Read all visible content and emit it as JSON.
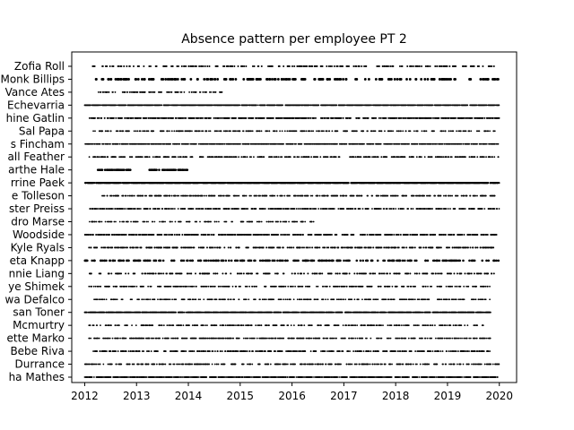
{
  "chart_data": {
    "type": "scatter",
    "title": "Absence pattern per employee PT 2",
    "xlabel": "",
    "ylabel": "",
    "xlim": [
      "2011-10-01",
      "2020-05-01"
    ],
    "x_ticks": [
      "2012",
      "2013",
      "2014",
      "2015",
      "2016",
      "2017",
      "2018",
      "2019",
      "2020"
    ],
    "grid": false,
    "legend": "none",
    "marker_color": "#000000",
    "employees": [
      {
        "name": "Zofia Roll",
        "spans": [
          [
            "2012-02-01",
            "2019-12-01"
          ]
        ],
        "density": 0.18,
        "size": 1.0
      },
      {
        "name": "Monk Billips",
        "spans": [
          [
            "2012-01-01",
            "2019-12-31"
          ]
        ],
        "density": 0.12,
        "size": 1.4
      },
      {
        "name": "Vance Ates",
        "spans": [
          [
            "2012-03-01",
            "2014-09-01"
          ]
        ],
        "density": 0.22,
        "size": 0.9
      },
      {
        "name": "Echevarria",
        "spans": [
          [
            "2012-01-01",
            "2019-12-31"
          ]
        ],
        "density": 0.95,
        "size": 0.9
      },
      {
        "name": "hine Gatlin",
        "spans": [
          [
            "2012-02-01",
            "2019-12-31"
          ]
        ],
        "density": 0.35,
        "size": 1.0
      },
      {
        "name": "Sal Papa",
        "spans": [
          [
            "2012-03-01",
            "2019-12-01"
          ]
        ],
        "density": 0.25,
        "size": 0.9
      },
      {
        "name": "s Fincham",
        "spans": [
          [
            "2012-01-01",
            "2019-12-31"
          ]
        ],
        "density": 0.55,
        "size": 0.9
      },
      {
        "name": "all Feather",
        "spans": [
          [
            "2012-02-01",
            "2016-12-01"
          ],
          [
            "2017-02-01",
            "2019-12-31"
          ]
        ],
        "density": 0.3,
        "size": 0.9
      },
      {
        "name": "arthe Hale",
        "spans": [
          [
            "2012-04-01",
            "2012-12-01"
          ],
          [
            "2013-04-01",
            "2014-01-01"
          ]
        ],
        "density": 0.4,
        "size": 1.3
      },
      {
        "name": "rrine Paek",
        "spans": [
          [
            "2012-01-01",
            "2019-12-31"
          ]
        ],
        "density": 0.95,
        "size": 1.1
      },
      {
        "name": "e Tolleson",
        "spans": [
          [
            "2012-05-01",
            "2019-12-01"
          ]
        ],
        "density": 0.3,
        "size": 0.9
      },
      {
        "name": "ster Preiss",
        "spans": [
          [
            "2012-02-01",
            "2019-12-31"
          ]
        ],
        "density": 0.35,
        "size": 0.9
      },
      {
        "name": "dro Marse",
        "spans": [
          [
            "2012-01-01",
            "2016-06-01"
          ]
        ],
        "density": 0.22,
        "size": 0.9
      },
      {
        "name": "Woodside",
        "spans": [
          [
            "2012-01-01",
            "2019-12-31"
          ]
        ],
        "density": 0.3,
        "size": 1.0
      },
      {
        "name": "Kyle Ryals",
        "spans": [
          [
            "2012-02-01",
            "2019-12-01"
          ]
        ],
        "density": 0.28,
        "size": 1.0
      },
      {
        "name": "eta Knapp",
        "spans": [
          [
            "2012-01-01",
            "2019-12-31"
          ]
        ],
        "density": 0.18,
        "size": 1.3
      },
      {
        "name": "nnie Liang",
        "spans": [
          [
            "2012-02-01",
            "2019-12-01"
          ]
        ],
        "density": 0.2,
        "size": 1.0
      },
      {
        "name": "ye Shimek",
        "spans": [
          [
            "2012-02-01",
            "2019-11-01"
          ]
        ],
        "density": 0.25,
        "size": 0.9
      },
      {
        "name": "wa Defalco",
        "spans": [
          [
            "2012-03-01",
            "2019-11-01"
          ]
        ],
        "density": 0.25,
        "size": 0.9
      },
      {
        "name": "san Toner",
        "spans": [
          [
            "2012-01-01",
            "2019-11-01"
          ]
        ],
        "density": 0.9,
        "size": 0.9
      },
      {
        "name": "Mcmurtry",
        "spans": [
          [
            "2012-02-01",
            "2019-10-01"
          ]
        ],
        "density": 0.22,
        "size": 0.9
      },
      {
        "name": "ette Marko",
        "spans": [
          [
            "2012-02-01",
            "2019-11-01"
          ]
        ],
        "density": 0.3,
        "size": 0.9
      },
      {
        "name": "Bebe Riva",
        "spans": [
          [
            "2012-03-01",
            "2019-11-01"
          ]
        ],
        "density": 0.3,
        "size": 0.9
      },
      {
        "name": "Durrance",
        "spans": [
          [
            "2012-01-01",
            "2019-12-31"
          ]
        ],
        "density": 0.3,
        "size": 0.9
      },
      {
        "name": "ha Mathes",
        "spans": [
          [
            "2012-01-01",
            "2019-12-31"
          ]
        ],
        "density": 0.75,
        "size": 0.9
      }
    ]
  }
}
